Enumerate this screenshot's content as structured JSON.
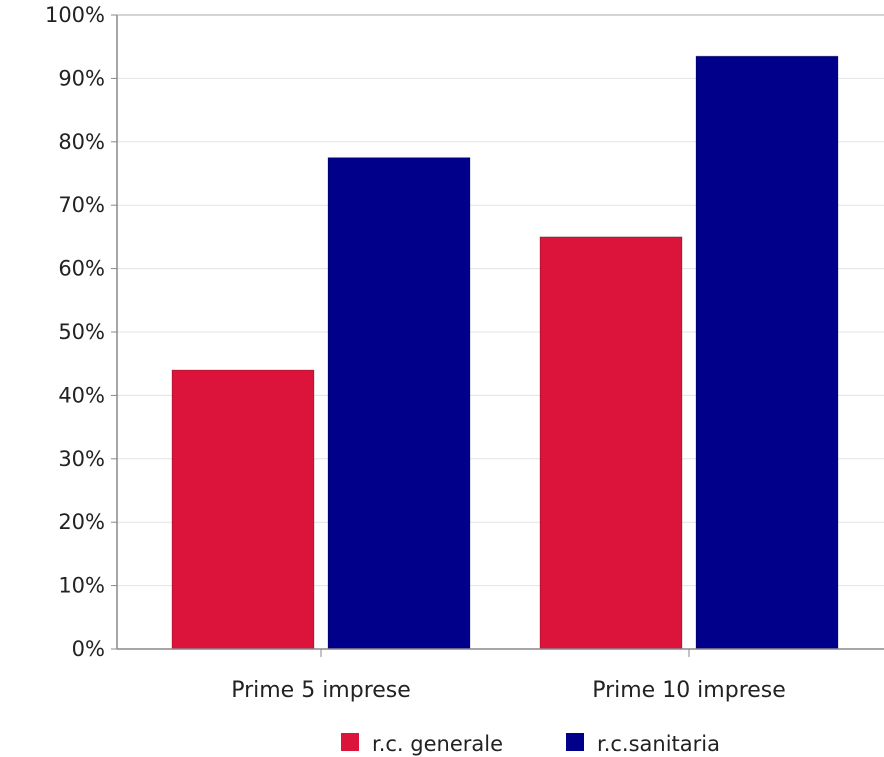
{
  "chart_data": {
    "type": "bar",
    "title": "",
    "xlabel": "",
    "ylabel": "",
    "categories": [
      "Prime 5 imprese",
      "Prime 10 imprese"
    ],
    "series": [
      {
        "name": "r.c. generale",
        "values": [
          44,
          65
        ],
        "color": "#dc143c"
      },
      {
        "name": "r.c.sanitaria",
        "values": [
          77.5,
          93.5
        ],
        "color": "#00008b"
      }
    ],
    "ylim": [
      0,
      100
    ],
    "yticks": [
      "0%",
      "10%",
      "20%",
      "30%",
      "40%",
      "50%",
      "60%",
      "70%",
      "80%",
      "90%",
      "100%"
    ],
    "grid": true,
    "legend": "bottom"
  }
}
